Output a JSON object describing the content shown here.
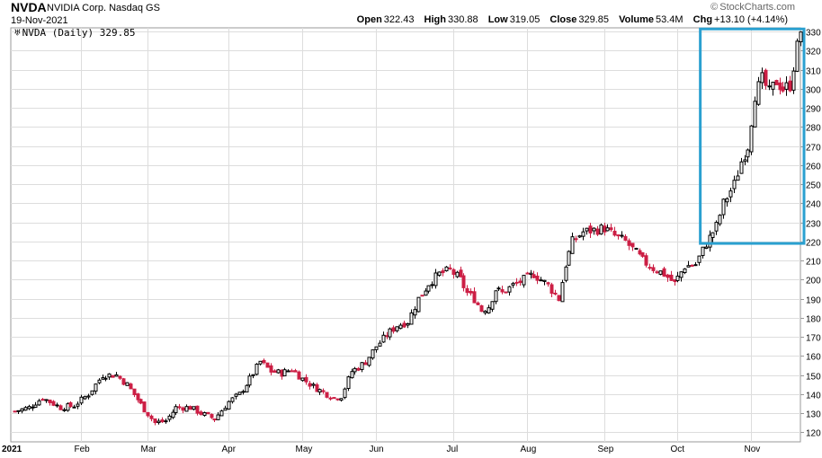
{
  "header": {
    "symbol": "NVDA",
    "company": "NVIDIA Corp. Nasdaq GS",
    "date": "19-Nov-2021",
    "brand": "StockCharts.com",
    "quote": {
      "open_label": "Open",
      "open": "322.43",
      "high_label": "High",
      "high": "330.88",
      "low_label": "Low",
      "low": "319.05",
      "close_label": "Close",
      "close": "329.85",
      "volume_label": "Volume",
      "volume": "53.4M",
      "chg_label": "Chg",
      "chg": "+13.10 (+4.14%)"
    },
    "legend": "NVDA (Daily) 329.85"
  },
  "colors": {
    "up": "#000000",
    "down": "#cc1f45",
    "grid": "#dddddd",
    "highlight": "#2aa0d0"
  },
  "chart_data": {
    "type": "candlestick",
    "symbol": "NVDA",
    "interval": "Daily",
    "ylim": [
      115,
      332
    ],
    "y_ticks": [
      120,
      130,
      140,
      150,
      160,
      170,
      180,
      190,
      200,
      210,
      220,
      230,
      240,
      250,
      260,
      270,
      280,
      290,
      300,
      310,
      320,
      330
    ],
    "x_labels": [
      "2021",
      "Feb",
      "Mar",
      "Apr",
      "May",
      "Jun",
      "Jul",
      "Aug",
      "Sep",
      "Oct",
      "Nov"
    ],
    "x_label_index": [
      0,
      19,
      38,
      61,
      82,
      103,
      125,
      146,
      168,
      189,
      210
    ],
    "grid": true,
    "highlight_box": {
      "from_index": 197,
      "to_index": 224,
      "y_range": [
        219,
        330
      ]
    },
    "anchors": [
      [
        0,
        131
      ],
      [
        4,
        133
      ],
      [
        8,
        138
      ],
      [
        13,
        133
      ],
      [
        17,
        134
      ],
      [
        21,
        140
      ],
      [
        25,
        150
      ],
      [
        29,
        150
      ],
      [
        32,
        145
      ],
      [
        37,
        132
      ],
      [
        40,
        125
      ],
      [
        43,
        126
      ],
      [
        46,
        133
      ],
      [
        50,
        133
      ],
      [
        53,
        130
      ],
      [
        57,
        127
      ],
      [
        61,
        136
      ],
      [
        64,
        140
      ],
      [
        67,
        148
      ],
      [
        70,
        157
      ],
      [
        73,
        152
      ],
      [
        76,
        151
      ],
      [
        79,
        153
      ],
      [
        82,
        148
      ],
      [
        85,
        144
      ],
      [
        88,
        141
      ],
      [
        91,
        138
      ],
      [
        93,
        139
      ],
      [
        96,
        152
      ],
      [
        98,
        154
      ],
      [
        100,
        157
      ],
      [
        103,
        165
      ],
      [
        106,
        171
      ],
      [
        109,
        176
      ],
      [
        112,
        178
      ],
      [
        115,
        190
      ],
      [
        118,
        198
      ],
      [
        121,
        203
      ],
      [
        124,
        205
      ],
      [
        127,
        200
      ],
      [
        129,
        193
      ],
      [
        131,
        190
      ],
      [
        133,
        184
      ],
      [
        135,
        186
      ],
      [
        137,
        195
      ],
      [
        139,
        193
      ],
      [
        142,
        197
      ],
      [
        145,
        200
      ],
      [
        148,
        203
      ],
      [
        150,
        200
      ],
      [
        152,
        197
      ],
      [
        155,
        190
      ],
      [
        157,
        208
      ],
      [
        159,
        220
      ],
      [
        162,
        225
      ],
      [
        165,
        226
      ],
      [
        168,
        227
      ],
      [
        171,
        223
      ],
      [
        174,
        220
      ],
      [
        176,
        216
      ],
      [
        179,
        210
      ],
      [
        182,
        206
      ],
      [
        185,
        203
      ],
      [
        188,
        198
      ],
      [
        191,
        207
      ],
      [
        194,
        208
      ],
      [
        197,
        219
      ],
      [
        200,
        228
      ],
      [
        202,
        240
      ],
      [
        205,
        250
      ],
      [
        207,
        262
      ],
      [
        209,
        270
      ],
      [
        211,
        297
      ],
      [
        213,
        305
      ],
      [
        215,
        298
      ],
      [
        217,
        304
      ],
      [
        219,
        300
      ],
      [
        221,
        302
      ],
      [
        223,
        322
      ],
      [
        224,
        329.85
      ]
    ]
  }
}
